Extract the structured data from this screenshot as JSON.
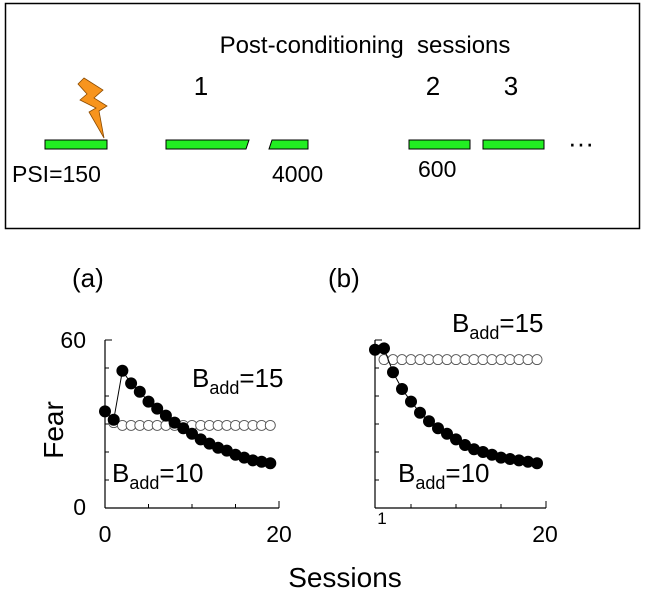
{
  "schematic": {
    "title": "Post-conditioning  sessions",
    "session_labels": [
      "1",
      "2",
      "3"
    ],
    "psi_label": "PSI=150",
    "interval_labels": [
      "4000",
      "600"
    ],
    "ellipsis": "···",
    "bar_color": "#22ee22",
    "shock_color": "#f7941d",
    "shock_icon": "lightning-bolt-icon"
  },
  "shared_axes": {
    "xlabel": "Sessions",
    "ylabel": "Fear"
  },
  "chart_data": [
    {
      "type": "scatter",
      "panel_label": "(a)",
      "xlim": [
        0,
        20
      ],
      "ylim": [
        0,
        60
      ],
      "xticks": [
        0,
        20
      ],
      "yticks": [
        0,
        60
      ],
      "series": [
        {
          "name": "B_add=15",
          "name_base": "B",
          "name_sub": "add",
          "name_value": "=15",
          "marker": "open-circle",
          "connected": false,
          "x": [
            0,
            1,
            2,
            3,
            4,
            5,
            6,
            7,
            8,
            9,
            10,
            11,
            12,
            13,
            14,
            15,
            16,
            17,
            18,
            19
          ],
          "y": [
            34.5,
            30.5,
            29.5,
            29.5,
            29.5,
            29.5,
            29.5,
            29.5,
            29.5,
            29.5,
            29.5,
            29.5,
            29.5,
            29.5,
            29.5,
            29.5,
            29.5,
            29.5,
            29.5,
            29.5
          ]
        },
        {
          "name": "B_add=10",
          "name_base": "B",
          "name_sub": "add",
          "name_value": "=10",
          "marker": "filled-circle",
          "connected": true,
          "x": [
            0,
            1,
            2,
            3,
            4,
            5,
            6,
            7,
            8,
            9,
            10,
            11,
            12,
            13,
            14,
            15,
            16,
            17,
            18,
            19
          ],
          "y": [
            34.5,
            31.5,
            49,
            44.5,
            41.5,
            38,
            35.5,
            33,
            30.5,
            28.5,
            26.5,
            24.5,
            23,
            21.5,
            20.5,
            19,
            18,
            17,
            16.5,
            16
          ]
        }
      ]
    },
    {
      "type": "scatter",
      "panel_label": "(b)",
      "xlim": [
        1,
        20
      ],
      "ylim": [
        0,
        60
      ],
      "xticks": [
        1,
        20
      ],
      "yticks": [],
      "series": [
        {
          "name": "B_add=15",
          "name_base": "B",
          "name_sub": "add",
          "name_value": "=15",
          "marker": "open-circle",
          "connected": false,
          "x": [
            2,
            3,
            4,
            5,
            6,
            7,
            8,
            9,
            10,
            11,
            12,
            13,
            14,
            15,
            16,
            17,
            18,
            19
          ],
          "y": [
            53,
            53,
            53,
            53,
            53,
            53,
            53,
            53,
            53,
            53,
            53,
            53,
            53,
            53,
            53,
            53,
            53,
            53
          ]
        },
        {
          "name": "B_add=10",
          "name_base": "B",
          "name_sub": "add",
          "name_value": "=10",
          "marker": "filled-circle",
          "connected": true,
          "x": [
            1,
            2,
            3,
            4,
            5,
            6,
            7,
            8,
            9,
            10,
            11,
            12,
            13,
            14,
            15,
            16,
            17,
            18,
            19
          ],
          "y": [
            56.5,
            57,
            48.5,
            42.5,
            38,
            34,
            31,
            28.5,
            26.5,
            24.5,
            22.5,
            21,
            20,
            19,
            18,
            17.5,
            17,
            16.5,
            16
          ]
        }
      ]
    }
  ]
}
